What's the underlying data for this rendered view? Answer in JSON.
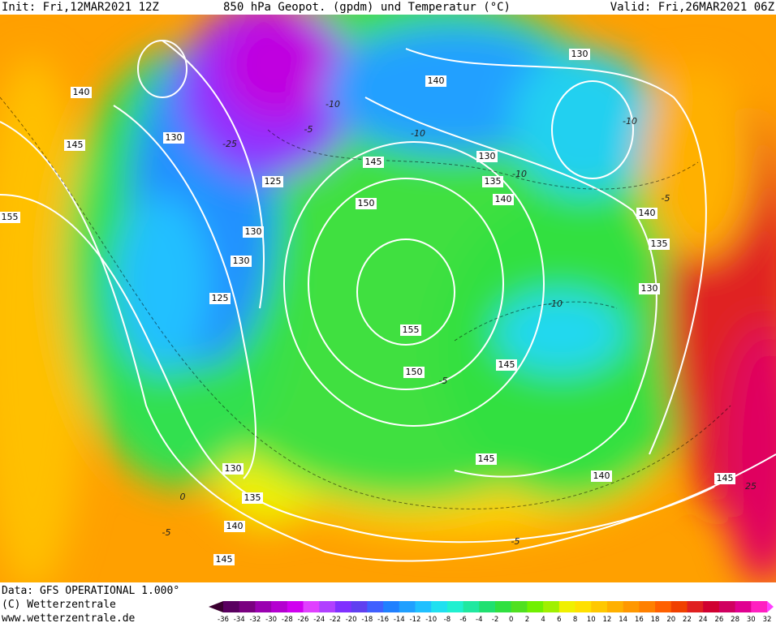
{
  "header": {
    "init": "Init: Fri,12MAR2021 12Z",
    "title": "850 hPa Geopot. (gpdm) und Temperatur (°C)",
    "valid": "Valid: Fri,26MAR2021 06Z"
  },
  "footer": {
    "source": "Data: GFS OPERATIONAL 1.000°",
    "copyright": "(C) Wetterzentrale",
    "url": "www.wetterzentrale.de"
  },
  "geopotential_labels": [
    140,
    145,
    130,
    155,
    125,
    130,
    130,
    125,
    145,
    150,
    155,
    150,
    130,
    135,
    140,
    140,
    130,
    140,
    135,
    130,
    145,
    145,
    140,
    145,
    130,
    135,
    140,
    145
  ],
  "temperature_labels": [
    -10,
    -25,
    -5,
    -10,
    -10,
    -10,
    -10,
    -5,
    -5,
    0,
    -5,
    25,
    -5
  ],
  "color_scale": {
    "values": [
      -36,
      -34,
      -32,
      -30,
      -28,
      -26,
      -24,
      -22,
      -20,
      -18,
      -16,
      -14,
      -12,
      -10,
      -8,
      -6,
      -4,
      -2,
      0,
      2,
      4,
      6,
      8,
      10,
      12,
      14,
      16,
      18,
      20,
      22,
      24,
      26,
      28,
      30,
      32
    ],
    "colors": [
      "#3a0030",
      "#5a0060",
      "#7a0080",
      "#9a00b0",
      "#b400d0",
      "#d000f0",
      "#e040ff",
      "#b040ff",
      "#8030ff",
      "#6040f0",
      "#4060ff",
      "#2080ff",
      "#20a0ff",
      "#20c0ff",
      "#20e0f0",
      "#20f0d0",
      "#20e8a0",
      "#20e070",
      "#30e040",
      "#50e020",
      "#70f000",
      "#a0f000",
      "#f0f000",
      "#ffe000",
      "#ffc800",
      "#ffb000",
      "#ff9800",
      "#ff8000",
      "#ff6000",
      "#f04000",
      "#e02020",
      "#d00030",
      "#d00060",
      "#e00090",
      "#ff20c0",
      "#ff40ff"
    ]
  }
}
